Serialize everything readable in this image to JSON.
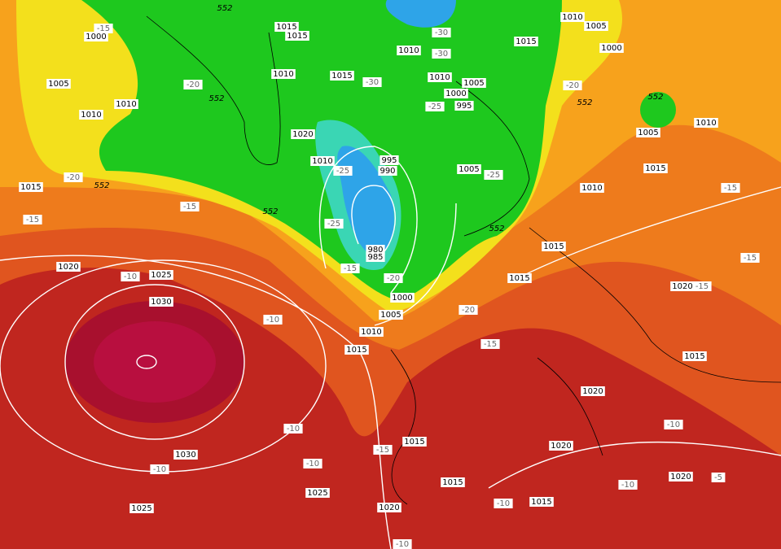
{
  "map": {
    "isobar_labels": [
      "1000",
      "1005",
      "1010",
      "1010",
      "1015",
      "1015",
      "1010",
      "1015",
      "1020",
      "1010",
      "995",
      "990",
      "980",
      "985",
      "1000",
      "1005",
      "1010",
      "1015",
      "1010",
      "1010",
      "1005",
      "1000",
      "995",
      "1005",
      "1015",
      "1010",
      "1005",
      "1000",
      "1005",
      "1010",
      "1015",
      "1010",
      "1015",
      "1015",
      "1020",
      "1015",
      "1020",
      "1020",
      "1020",
      "1015",
      "1015",
      "1015",
      "1020",
      "1025",
      "1030",
      "1025",
      "1030",
      "1025",
      "1020",
      "1015"
    ],
    "temperature_labels": [
      "-15",
      "-20",
      "-20",
      "-15",
      "-15",
      "-30",
      "-30",
      "-30",
      "-25",
      "-25",
      "-25",
      "-15",
      "-20",
      "-20",
      "-25",
      "-20",
      "-15",
      "-15",
      "-15",
      "-15",
      "-10",
      "-10",
      "-10",
      "-10",
      "-10",
      "-15",
      "-10",
      "-10",
      "-10",
      "-5",
      "-10"
    ],
    "height_labels": [
      "552",
      "552",
      "552",
      "552",
      "552",
      "552",
      "552"
    ]
  }
}
